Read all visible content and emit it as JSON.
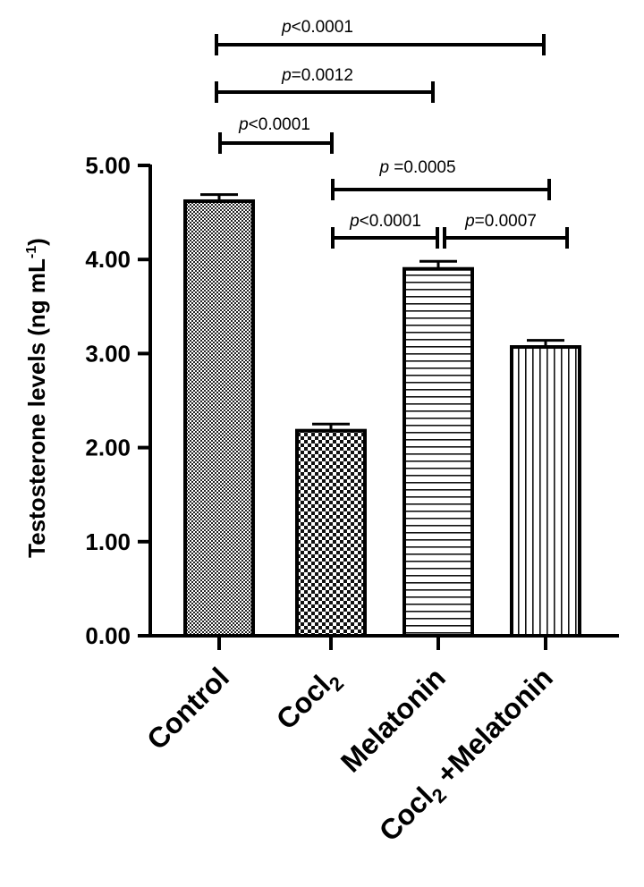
{
  "chart_data": {
    "type": "bar",
    "categories": [
      {
        "main": "Control",
        "sub": "",
        "tail": ""
      },
      {
        "main": "Cocl",
        "sub": "2",
        "tail": ""
      },
      {
        "main": "Melatonin",
        "sub": "",
        "tail": ""
      },
      {
        "main": "Cocl",
        "sub": "2",
        "tail": " +Melatonin"
      }
    ],
    "values": [
      4.62,
      2.18,
      3.9,
      3.07
    ],
    "errors": [
      0.07,
      0.07,
      0.08,
      0.07
    ],
    "patterns": [
      "crosshatch-fine",
      "checker-coarse",
      "horizontal-lines",
      "vertical-lines"
    ],
    "ylabel": {
      "main": "Testosterone levels (ng mL",
      "sup": "-1",
      "tail": ")"
    },
    "ylim": [
      0,
      5
    ],
    "yticks": [
      "0.00",
      "1.00",
      "2.00",
      "3.00",
      "4.00",
      "5.00"
    ],
    "ytick_values": [
      0,
      1,
      2,
      3,
      4,
      5
    ],
    "comparisons": [
      {
        "from": 0,
        "to": 3,
        "p": "p",
        "rest": "<0.0001"
      },
      {
        "from": 0,
        "to": 2,
        "p": "p",
        "rest": "=0.0012"
      },
      {
        "from": 0,
        "to": 1,
        "p": "p",
        "rest": "<0.0001"
      },
      {
        "from": 1,
        "to": 3,
        "p": "p",
        "rest": " =0.0005"
      },
      {
        "from": 1,
        "to": 2,
        "p": "p",
        "rest": "<0.0001"
      },
      {
        "from": 2,
        "to": 3,
        "p": "p",
        "rest": "=0.0007"
      }
    ],
    "colors": {
      "bar_stroke": "#000000",
      "fill": "#000000",
      "background": "#ffffff"
    },
    "grid": false,
    "legend": "none"
  }
}
